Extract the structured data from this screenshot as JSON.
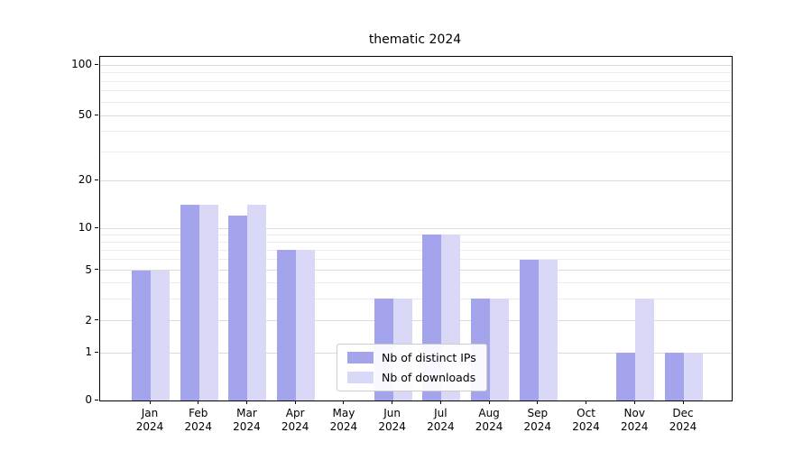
{
  "chart_data": {
    "type": "bar",
    "title": "thematic 2024",
    "categories": [
      "Jan",
      "Feb",
      "Mar",
      "Apr",
      "May",
      "Jun",
      "Jul",
      "Aug",
      "Sep",
      "Oct",
      "Nov",
      "Dec"
    ],
    "x_year": "2024",
    "series": [
      {
        "name": "Nb of distinct IPs",
        "color": "#a4a4ec",
        "values": [
          5,
          14,
          12,
          7,
          0,
          3,
          9,
          3,
          6,
          0,
          1,
          1
        ]
      },
      {
        "name": "Nb of downloads",
        "color": "#d9d9f7",
        "values": [
          5,
          14,
          14,
          7,
          0,
          3,
          9,
          3,
          6,
          0,
          3,
          1
        ]
      }
    ],
    "y_ticks": [
      0,
      1,
      2,
      5,
      10,
      20,
      50,
      100
    ],
    "y_minor_gridlines": [
      3,
      4,
      6,
      7,
      8,
      9,
      30,
      40,
      60,
      70,
      80,
      90
    ],
    "ylim": [
      0,
      110
    ],
    "y_scale": "symlog (1-2-5 major ticks)",
    "xlabel": "",
    "ylabel": "",
    "grid": "horizontal",
    "legend": {
      "position": "lower center"
    },
    "colors": {
      "axis": "#000000",
      "grid_major": "#dcdcdc",
      "grid_minor": "#ececec",
      "text": "#000000",
      "background": "#ffffff"
    }
  }
}
